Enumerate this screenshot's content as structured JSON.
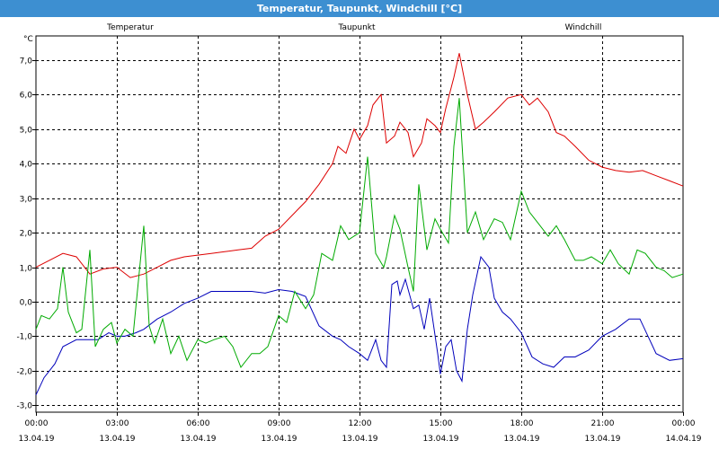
{
  "window": {
    "title": "Temperatur, Taupunkt, Windchill [°C]"
  },
  "chart_data": {
    "type": "line",
    "title": "Temperatur, Taupunkt, Windchill [°C]",
    "ylabel": "°C",
    "ylim": [
      -3.2,
      7.7
    ],
    "xlim": [
      0,
      24
    ],
    "yticks": [
      "-3,0",
      "-2,0",
      "-1,0",
      "0,0",
      "1,0",
      "2,0",
      "3,0",
      "4,0",
      "5,0",
      "6,0",
      "7,0"
    ],
    "xticks": [
      {
        "time": "00:00",
        "date": "13.04.19"
      },
      {
        "time": "03:00",
        "date": "13.04.19"
      },
      {
        "time": "06:00",
        "date": "13.04.19"
      },
      {
        "time": "09:00",
        "date": "13.04.19"
      },
      {
        "time": "12:00",
        "date": "13.04.19"
      },
      {
        "time": "15:00",
        "date": "13.04.19"
      },
      {
        "time": "18:00",
        "date": "13.04.19"
      },
      {
        "time": "21:00",
        "date": "13.04.19"
      },
      {
        "time": "00:00",
        "date": "14.04.19"
      }
    ],
    "grid": true,
    "legend": "top",
    "series": [
      {
        "name": "Temperatur",
        "color": "#dd0000",
        "x": [
          0,
          0.5,
          1,
          1.5,
          2,
          2.5,
          3,
          3.5,
          4,
          4.5,
          5,
          5.5,
          6,
          6.5,
          7,
          7.5,
          8,
          8.5,
          9,
          9.5,
          10,
          10.5,
          11,
          11.2,
          11.5,
          11.8,
          12,
          12.3,
          12.5,
          12.8,
          13,
          13.3,
          13.5,
          13.8,
          14,
          14.3,
          14.5,
          14.8,
          15,
          15.2,
          15.5,
          15.7,
          16,
          16.3,
          16.6,
          17,
          17.5,
          18,
          18.3,
          18.6,
          19,
          19.3,
          19.6,
          20,
          20.5,
          21,
          21.5,
          22,
          22.5,
          23,
          23.5,
          24
        ],
        "y": [
          1.0,
          1.2,
          1.4,
          1.3,
          0.8,
          0.95,
          1.0,
          0.7,
          0.8,
          1.0,
          1.2,
          1.3,
          1.35,
          1.4,
          1.45,
          1.5,
          1.55,
          1.9,
          2.1,
          2.5,
          2.9,
          3.4,
          4.0,
          4.5,
          4.3,
          5.0,
          4.7,
          5.1,
          5.7,
          6.0,
          4.6,
          4.8,
          5.2,
          4.9,
          4.2,
          4.6,
          5.3,
          5.1,
          4.9,
          5.6,
          6.5,
          7.2,
          6.0,
          5.0,
          5.2,
          5.5,
          5.9,
          6.0,
          5.7,
          5.9,
          5.5,
          4.9,
          4.8,
          4.5,
          4.1,
          3.9,
          3.8,
          3.75,
          3.8,
          3.65,
          3.5,
          3.35
        ]
      },
      {
        "name": "Taupunkt",
        "color": "#0000bb",
        "x": [
          0,
          0.3,
          0.7,
          1,
          1.5,
          2,
          2.3,
          2.7,
          3,
          3.3,
          3.7,
          4,
          4.5,
          5,
          5.5,
          6,
          6.5,
          7,
          7.5,
          8,
          8.5,
          9,
          9.5,
          10,
          10.5,
          11,
          11.3,
          11.6,
          12,
          12.3,
          12.6,
          12.8,
          13,
          13.2,
          13.4,
          13.5,
          13.7,
          14,
          14.2,
          14.4,
          14.6,
          14.9,
          15,
          15.2,
          15.4,
          15.6,
          15.8,
          16,
          16.2,
          16.5,
          16.8,
          17,
          17.3,
          17.6,
          18,
          18.4,
          18.8,
          19.2,
          19.6,
          20,
          20.5,
          21,
          21.5,
          22,
          22.4,
          22.7,
          23,
          23.5,
          24
        ],
        "y": [
          -2.7,
          -2.2,
          -1.8,
          -1.3,
          -1.1,
          -1.1,
          -1.1,
          -0.9,
          -1.0,
          -1.0,
          -0.9,
          -0.8,
          -0.5,
          -0.3,
          -0.05,
          0.1,
          0.3,
          0.3,
          0.3,
          0.3,
          0.25,
          0.35,
          0.3,
          0.15,
          -0.7,
          -1.0,
          -1.1,
          -1.3,
          -1.5,
          -1.7,
          -1.1,
          -1.7,
          -1.9,
          0.5,
          0.6,
          0.2,
          0.65,
          -0.2,
          -0.1,
          -0.8,
          0.1,
          -1.5,
          -2.1,
          -1.3,
          -1.1,
          -2.0,
          -2.3,
          -0.8,
          0.2,
          1.3,
          1.0,
          0.1,
          -0.3,
          -0.5,
          -0.9,
          -1.6,
          -1.8,
          -1.9,
          -1.6,
          -1.6,
          -1.4,
          -1.0,
          -0.8,
          -0.5,
          -0.5,
          -1.0,
          -1.5,
          -1.7,
          -1.65
        ]
      },
      {
        "name": "Windchill",
        "color": "#00aa00",
        "x": [
          0,
          0.2,
          0.5,
          0.8,
          1,
          1.2,
          1.5,
          1.7,
          2,
          2.2,
          2.5,
          2.8,
          3,
          3.3,
          3.6,
          4,
          4.2,
          4.4,
          4.7,
          5,
          5.3,
          5.6,
          6,
          6.3,
          6.6,
          7,
          7.3,
          7.6,
          8,
          8.3,
          8.6,
          9,
          9.3,
          9.6,
          10,
          10.3,
          10.6,
          11,
          11.3,
          11.6,
          12,
          12.3,
          12.6,
          12.9,
          13,
          13.3,
          13.5,
          13.8,
          14,
          14.2,
          14.5,
          14.8,
          15,
          15.3,
          15.5,
          15.7,
          16,
          16.3,
          16.6,
          17,
          17.3,
          17.6,
          18,
          18.3,
          18.6,
          19,
          19.3,
          19.6,
          20,
          20.3,
          20.6,
          21,
          21.3,
          21.6,
          22,
          22.3,
          22.6,
          23,
          23.3,
          23.6,
          24
        ],
        "y": [
          -0.8,
          -0.4,
          -0.5,
          -0.2,
          1.0,
          -0.3,
          -0.9,
          -0.8,
          1.5,
          -1.3,
          -0.8,
          -0.6,
          -1.2,
          -0.8,
          -1.0,
          2.2,
          -0.7,
          -1.2,
          -0.5,
          -1.5,
          -1.0,
          -1.7,
          -1.1,
          -1.2,
          -1.1,
          -1.0,
          -1.3,
          -1.9,
          -1.5,
          -1.5,
          -1.3,
          -0.4,
          -0.6,
          0.3,
          -0.2,
          0.2,
          1.4,
          1.2,
          2.2,
          1.8,
          2.0,
          4.2,
          1.4,
          1.0,
          1.3,
          2.5,
          2.1,
          1.0,
          0.3,
          3.4,
          1.5,
          2.4,
          2.1,
          1.7,
          4.5,
          5.9,
          2.0,
          2.6,
          1.8,
          2.4,
          2.3,
          1.8,
          3.2,
          2.6,
          2.3,
          1.9,
          2.2,
          1.8,
          1.2,
          1.2,
          1.3,
          1.1,
          1.5,
          1.1,
          0.8,
          1.5,
          1.4,
          1.0,
          0.9,
          0.7,
          0.8
        ]
      }
    ]
  }
}
